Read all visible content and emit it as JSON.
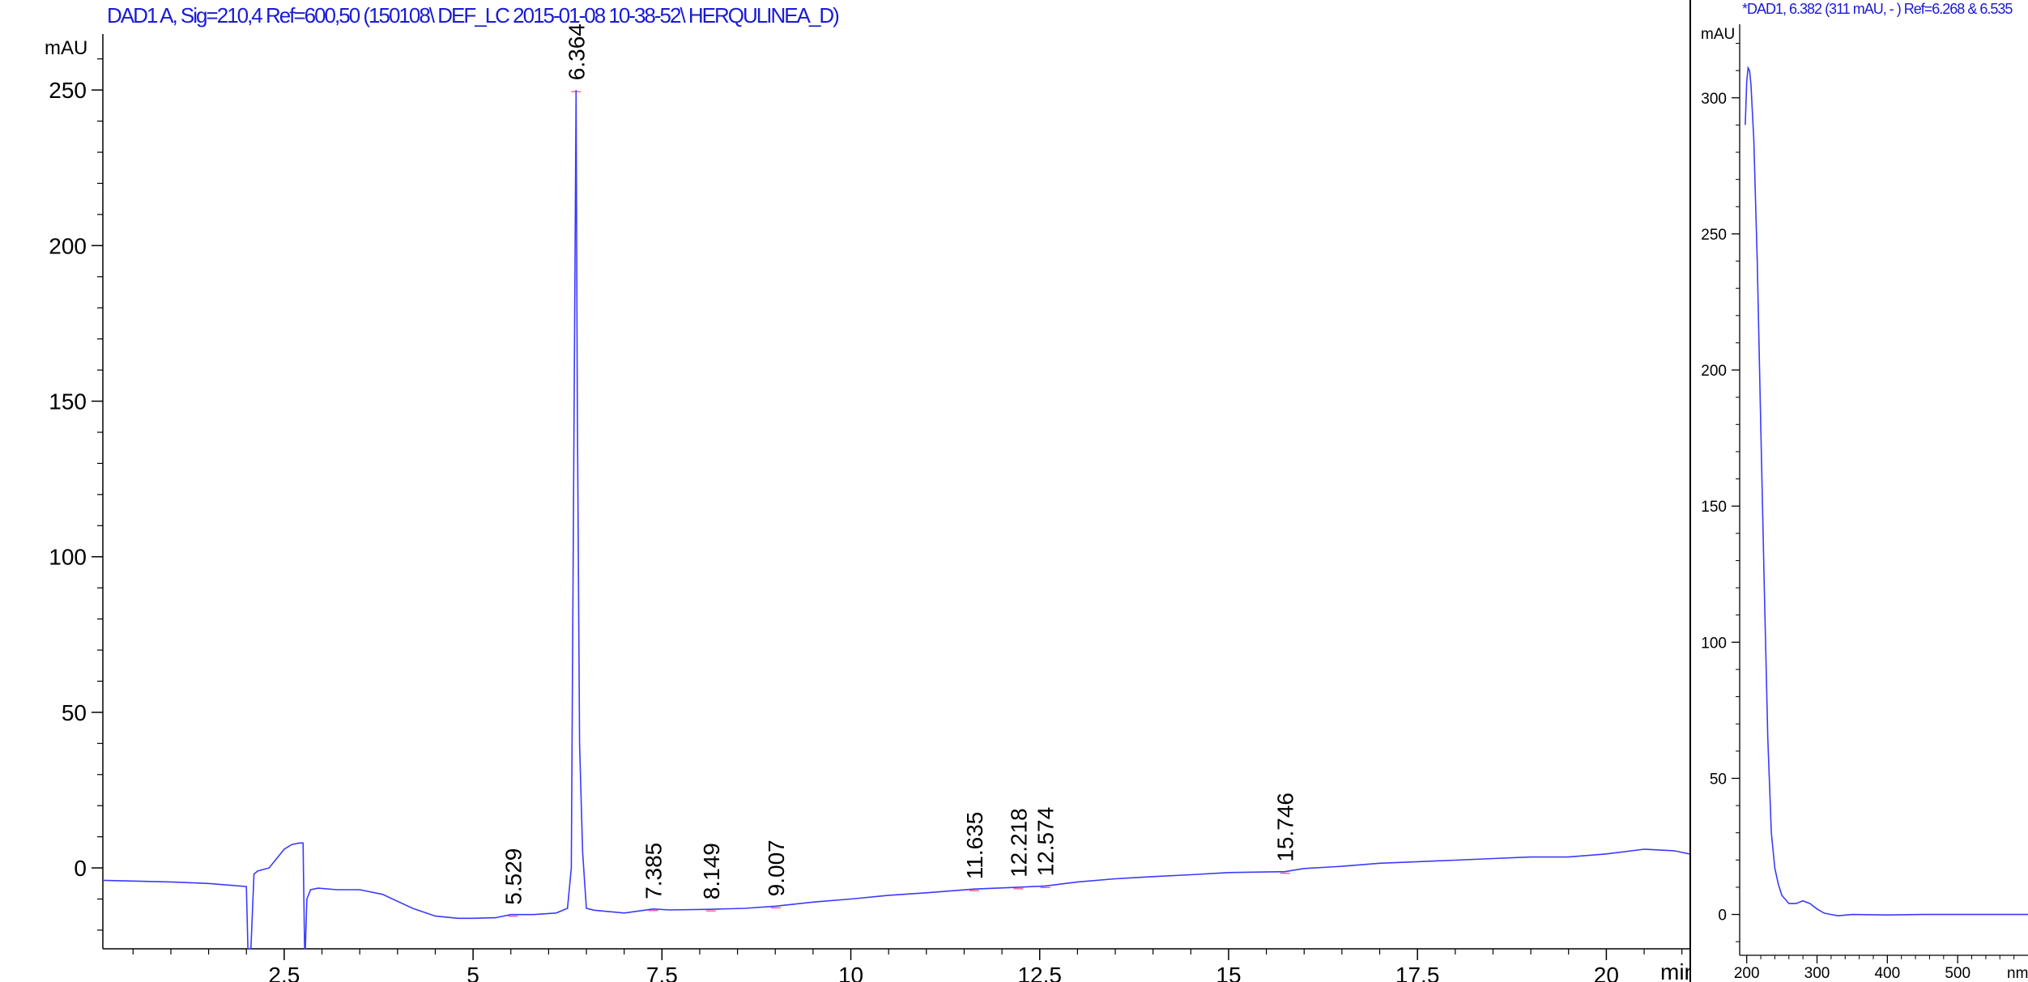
{
  "chart_data": [
    {
      "type": "line",
      "title": "DAD1 A, Sig=210,4 Ref=600,50 (150108\\ DEF_LC 2015-01-08 10-38-52\\ HERQULINEA_D)",
      "ylabel": "mAU",
      "xlabel": "min",
      "xlim": [
        0.1,
        21.1
      ],
      "ylim": [
        -26,
        268
      ],
      "x_ticks": [
        2.5,
        5,
        7.5,
        10,
        12.5,
        15,
        17.5,
        20
      ],
      "x_tick_labels": [
        "2.5",
        "5",
        "7.5",
        "10",
        "12.5",
        "15",
        "17.5",
        "20"
      ],
      "y_ticks": [
        0,
        50,
        100,
        150,
        200,
        250
      ],
      "y_tick_labels": [
        "0",
        "50",
        "100",
        "150",
        "200",
        "250"
      ],
      "grid": false,
      "line_color": "#3a3aff",
      "series": [
        {
          "x": [
            0.1,
            1.0,
            1.5,
            2.0,
            2.02,
            2.06,
            2.1,
            2.15,
            2.3,
            2.4,
            2.5,
            2.6,
            2.7,
            2.75,
            2.77,
            2.78,
            2.8,
            2.85,
            2.95,
            3.2,
            3.5,
            3.8,
            4.2,
            4.5,
            4.8,
            5.0,
            5.3,
            5.5,
            5.8,
            6.1,
            6.25,
            6.3,
            6.33,
            6.364,
            6.38,
            6.41,
            6.45,
            6.5,
            6.6,
            7.0,
            7.385,
            7.6,
            8.149,
            8.6,
            9.007,
            9.5,
            10.0,
            10.5,
            11.0,
            11.635,
            12.218,
            12.574,
            13.0,
            13.5,
            14.0,
            14.5,
            15.0,
            15.746,
            16.0,
            16.5,
            17.0,
            17.5,
            18.0,
            18.5,
            19.0,
            19.5,
            20.0,
            20.5,
            20.9,
            21.1
          ],
          "y": [
            -4,
            -4.5,
            -5,
            -6,
            -26,
            -26,
            -2,
            -1,
            0,
            3,
            6,
            7.5,
            8,
            8,
            -26,
            -26,
            -10,
            -7,
            -6.5,
            -7,
            -7,
            -8.5,
            -13,
            -15.5,
            -16.2,
            -16.2,
            -16,
            -15,
            -15,
            -14.5,
            -13,
            0,
            120,
            250,
            150,
            40,
            5,
            -13,
            -13.6,
            -14.5,
            -13.2,
            -13.5,
            -13.3,
            -13,
            -12.3,
            -11,
            -10,
            -8.8,
            -8,
            -6.8,
            -6.2,
            -5.8,
            -4.5,
            -3.5,
            -2.8,
            -2.2,
            -1.5,
            -1.2,
            -0.2,
            0.5,
            1.5,
            2,
            2.5,
            3,
            3.5,
            3.5,
            4.5,
            6,
            5.5,
            4.5
          ]
        }
      ],
      "peaks": [
        {
          "rt": 5.529,
          "label": "5.529"
        },
        {
          "rt": 6.364,
          "label": "6.364"
        },
        {
          "rt": 7.385,
          "label": "7.385"
        },
        {
          "rt": 8.149,
          "label": "8.149"
        },
        {
          "rt": 9.007,
          "label": "9.007"
        },
        {
          "rt": 11.635,
          "label": "11.635"
        },
        {
          "rt": 12.218,
          "label": "12.218"
        },
        {
          "rt": 12.574,
          "label": "12.574"
        },
        {
          "rt": 15.746,
          "label": "15.746"
        }
      ]
    },
    {
      "type": "line",
      "title": "*DAD1, 6.382 (311 mAU, - ) Ref=6.268 & 6.535",
      "ylabel": "mAU",
      "xlabel": "nm",
      "xlim": [
        190,
        600
      ],
      "ylim": [
        -15,
        327
      ],
      "x_ticks": [
        200,
        300,
        400,
        500
      ],
      "x_tick_labels": [
        "200",
        "300",
        "400",
        "500"
      ],
      "y_ticks": [
        0,
        50,
        100,
        150,
        200,
        250,
        300
      ],
      "y_tick_labels": [
        "0",
        "50",
        "100",
        "150",
        "200",
        "250",
        "300"
      ],
      "grid": false,
      "line_color": "#3a3aff",
      "series": [
        {
          "x": [
            198,
            200,
            202,
            204,
            206,
            210,
            215,
            220,
            225,
            230,
            235,
            240,
            245,
            250,
            260,
            270,
            280,
            290,
            300,
            310,
            320,
            330,
            350,
            400,
            450,
            500,
            550,
            600
          ],
          "y": [
            290,
            306,
            311,
            310,
            305,
            285,
            240,
            180,
            120,
            65,
            30,
            17,
            11,
            7,
            4,
            4,
            5,
            4,
            2,
            0.5,
            0,
            -0.5,
            0,
            -0.2,
            0,
            0,
            0,
            0
          ]
        }
      ]
    }
  ]
}
